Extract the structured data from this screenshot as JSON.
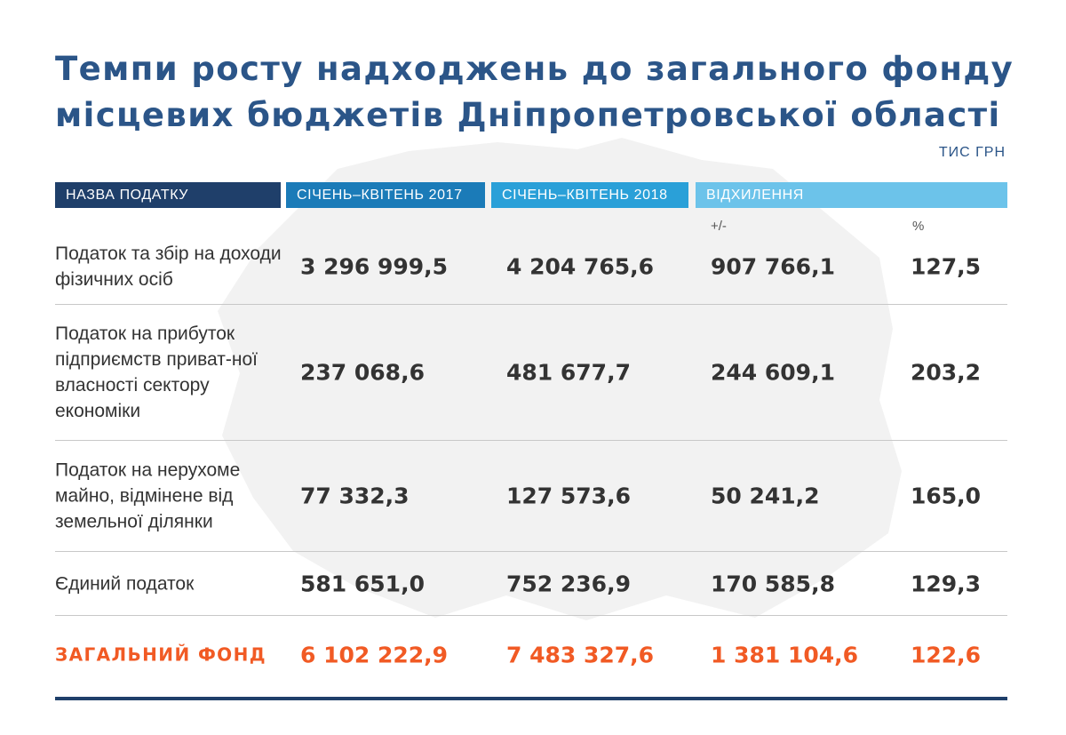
{
  "title_lines": [
    "Темпи росту надходжень до загального фонду",
    "місцевих бюджетів Дніпропетровської області"
  ],
  "unit": "ТИС ГРН",
  "headers": {
    "name": "НАЗВА ПОДАТКУ",
    "col2017": "СІЧЕНЬ–КВІТЕНЬ 2017",
    "col2018": "СІЧЕНЬ–КВІТЕНЬ 2018",
    "deviation": "ВІДХИЛЕННЯ"
  },
  "subheaders": {
    "abs": "+/-",
    "pct": "%"
  },
  "rows": [
    {
      "name": "Податок та збір на доходи фізичних осіб",
      "v2017": "3 296 999,5",
      "v2018": "4 204 765,6",
      "abs": "907 766,1",
      "pct": "127,5"
    },
    {
      "name": "Податок на прибуток підприємств приват-ної власності сектору економіки",
      "v2017": "237 068,6",
      "v2018": "481 677,7",
      "abs": "244 609,1",
      "pct": "203,2"
    },
    {
      "name": "Податок на нерухоме майно, відмінене від земельної ділянки",
      "v2017": "77 332,3",
      "v2018": "127 573,6",
      "abs": "50 241,2",
      "pct": "165,0"
    },
    {
      "name": "Єдиний податок",
      "v2017": "581 651,0",
      "v2018": "752 236,9",
      "abs": "170 585,8",
      "pct": "129,3"
    }
  ],
  "total": {
    "name": "ЗАГАЛЬНИЙ ФОНД",
    "v2017": "6 102 222,9",
    "v2018": "7 483 327,6",
    "abs": "1 381 104,6",
    "pct": "122,6"
  },
  "colors": {
    "title": "#2b5588",
    "header_name": "#1f3f6a",
    "header_2017": "#1b7bb8",
    "header_2018": "#2aa0d8",
    "header_deviation": "#6cc3ea",
    "total": "#f15a24",
    "background_map": "#f2f2f2"
  },
  "chart_data": {
    "type": "table",
    "title": "Темпи росту надходжень до загального фонду місцевих бюджетів Дніпропетровської області",
    "unit": "ТИС ГРН",
    "columns": [
      "НАЗВА ПОДАТКУ",
      "СІЧЕНЬ–КВІТЕНЬ 2017",
      "СІЧЕНЬ–КВІТЕНЬ 2018",
      "+/-",
      "%"
    ],
    "rows": [
      [
        "Податок та збір на доходи фізичних осіб",
        3296999.5,
        4204765.6,
        907766.1,
        127.5
      ],
      [
        "Податок на прибуток підприємств приватної власності сектору економіки",
        237068.6,
        481677.7,
        244609.1,
        203.2
      ],
      [
        "Податок на нерухоме майно, відмінене від земельної ділянки",
        77332.3,
        127573.6,
        50241.2,
        165.0
      ],
      [
        "Єдиний податок",
        581651.0,
        752236.9,
        170585.8,
        129.3
      ],
      [
        "ЗАГАЛЬНИЙ ФОНД",
        6102222.9,
        7483327.6,
        1381104.6,
        122.6
      ]
    ]
  }
}
